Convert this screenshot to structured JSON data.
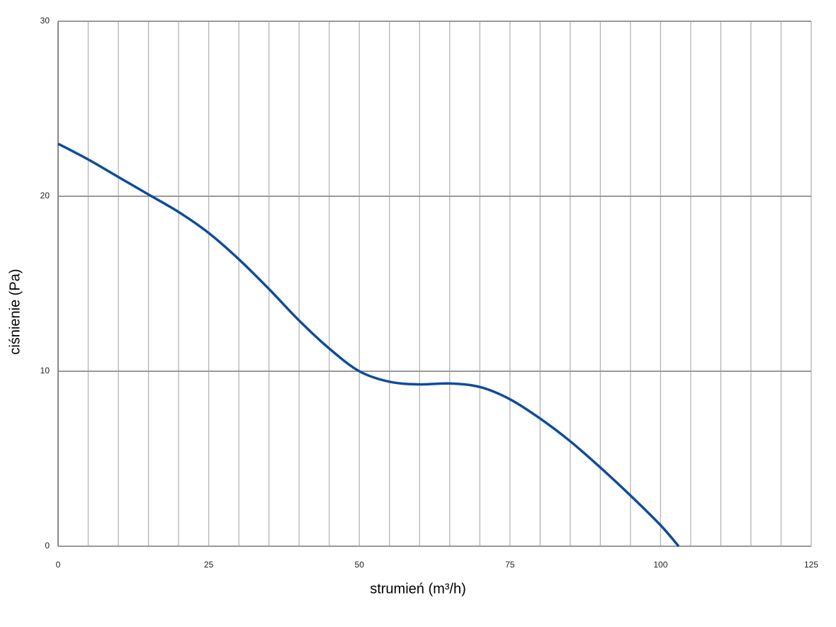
{
  "chart_data": {
    "type": "line",
    "xlabel": "strumień (m³/h)",
    "ylabel": "ciśnienie (Pa)",
    "x": [
      0,
      5,
      10,
      15,
      20,
      25,
      30,
      35,
      40,
      45,
      50,
      55,
      60,
      65,
      70,
      75,
      80,
      85,
      90,
      95,
      100,
      103
    ],
    "series": [
      {
        "color": "#0e4c9b",
        "values": [
          23,
          22.1,
          21.1,
          20.1,
          19.1,
          17.9,
          16.4,
          14.7,
          12.9,
          11.3,
          10.0,
          9.4,
          9.25,
          9.3,
          9.1,
          8.4,
          7.3,
          6.0,
          4.5,
          2.9,
          1.2,
          0
        ]
      }
    ],
    "xlim": [
      0,
      125
    ],
    "ylim": [
      0,
      30
    ],
    "xticks": [
      0,
      25,
      50,
      75,
      100,
      125
    ],
    "yticks": [
      0,
      10,
      20,
      30
    ],
    "xgrid": [
      5,
      10,
      15,
      20,
      30,
      35,
      40,
      45,
      55,
      60,
      65,
      70,
      80,
      85,
      90,
      95,
      105,
      110,
      115,
      120
    ],
    "grid": true
  }
}
